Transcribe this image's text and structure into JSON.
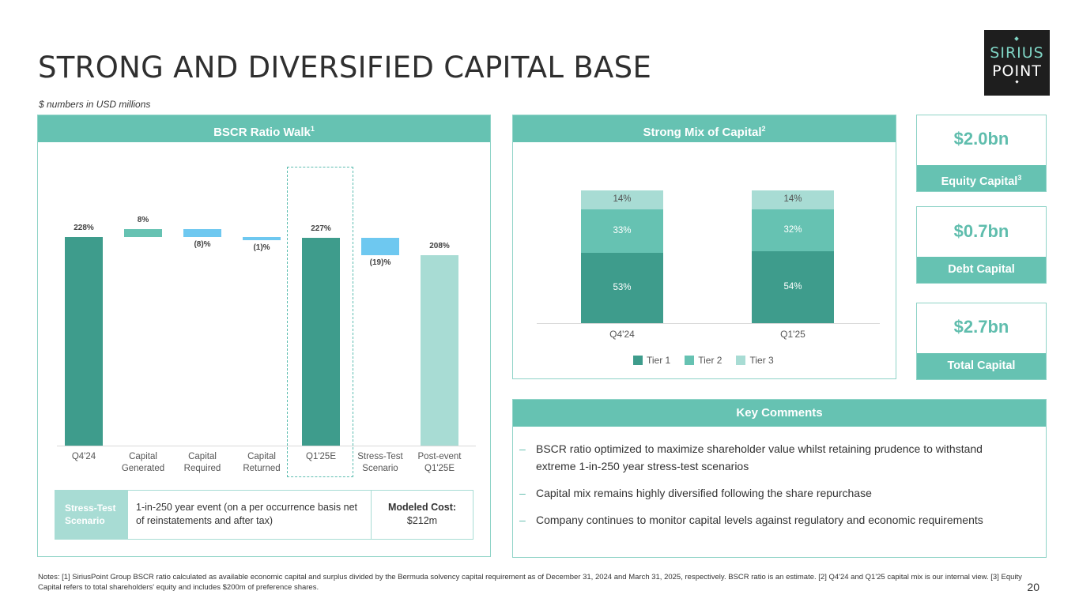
{
  "title": "STRONG AND DIVERSIFIED CAPITAL BASE",
  "subtitle": "$ numbers in USD millions",
  "logo": {
    "line1": "SIRIUS",
    "line2": "POINT"
  },
  "walk": {
    "header": "BSCR Ratio Walk",
    "header_sup": "1",
    "stress_label": "Stress-Test Scenario",
    "stress_desc": "1-in-250 year event (on a per occurrence basis net of reinstatements and after tax)",
    "cost_label": "Modeled Cost:",
    "cost_value": "$212m"
  },
  "chart_data": [
    {
      "type": "bar",
      "subtype": "waterfall",
      "title": "BSCR Ratio Walk",
      "categories": [
        "Q4'24",
        "Capital Generated",
        "Capital Required",
        "Capital Returned",
        "Q1'25E",
        "Stress-Test Scenario",
        "Post-event Q1'25E"
      ],
      "values": [
        228,
        8,
        -8,
        -1,
        227,
        -19,
        208
      ],
      "data_labels": [
        "228%",
        "8%",
        "(8)%",
        "(1)%",
        "227%",
        "(19)%",
        "208%"
      ],
      "bar_kinds": [
        "total",
        "increase",
        "decrease",
        "decrease",
        "total",
        "decrease",
        "total-light"
      ],
      "highlighted_category": "Q1'25E",
      "colors": {
        "total": "#3e9c8c",
        "increase": "#66c2b2",
        "decrease": "#6ec8f0",
        "total-light": "#a8dcd4"
      }
    },
    {
      "type": "bar",
      "subtype": "stacked-100",
      "title": "Strong Mix of Capital",
      "categories": [
        "Q4'24",
        "Q1'25"
      ],
      "series": [
        {
          "name": "Tier 1",
          "values": [
            53,
            54
          ],
          "labels": [
            "53%",
            "54%"
          ],
          "color": "#3e9c8c"
        },
        {
          "name": "Tier 2",
          "values": [
            33,
            32
          ],
          "labels": [
            "33%",
            "32%"
          ],
          "color": "#66c2b2"
        },
        {
          "name": "Tier 3",
          "values": [
            14,
            14
          ],
          "labels": [
            "14%",
            "14%"
          ],
          "color": "#a8dcd4"
        }
      ],
      "legend": "bottom"
    }
  ],
  "mix": {
    "header": "Strong Mix of Capital",
    "header_sup": "2"
  },
  "kpis": [
    {
      "value": "$2.0bn",
      "label": "Equity Capital",
      "sup": "3"
    },
    {
      "value": "$0.7bn",
      "label": "Debt Capital",
      "sup": ""
    },
    {
      "value": "$2.7bn",
      "label": "Total Capital",
      "sup": ""
    }
  ],
  "comments": {
    "header": "Key Comments",
    "dash": "–",
    "items": [
      "BSCR ratio optimized to maximize shareholder value whilst retaining prudence to withstand extreme 1-in-250 year stress-test scenarios",
      "Capital mix remains highly diversified following the share repurchase",
      "Company continues to monitor capital levels against regulatory and economic requirements"
    ]
  },
  "notes": "Notes: [1] SiriusPoint Group BSCR ratio calculated as available economic capital and surplus divided by the Bermuda solvency capital requirement as of December 31, 2024 and March 31, 2025, respectively. BSCR ratio is an estimate. [2] Q4'24 and Q1'25 capital mix is our internal view. [3] Equity Capital refers to total shareholders' equity and includes $200m of preference shares.",
  "page_number": "20"
}
